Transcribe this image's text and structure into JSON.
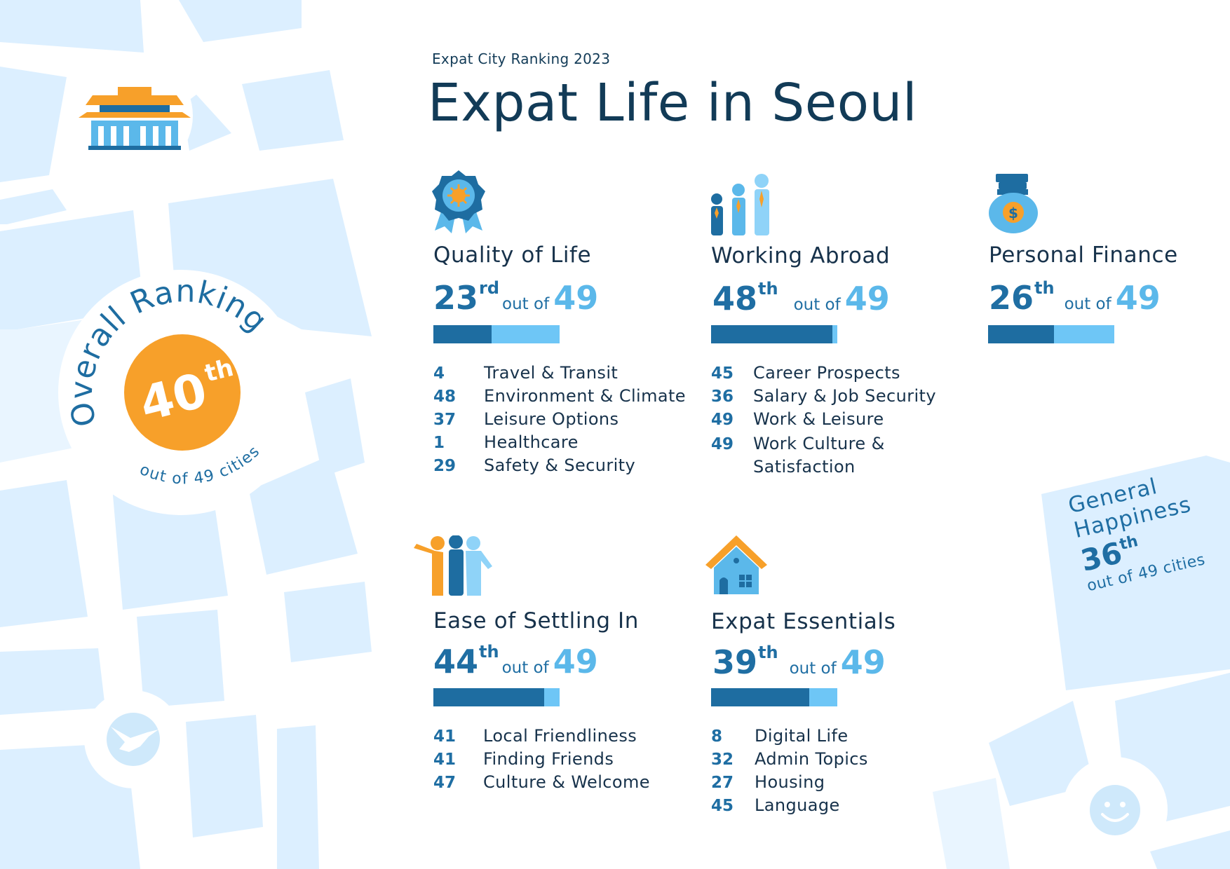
{
  "header": {
    "kicker": "Expat City Ranking 2023",
    "title": "Expat Life in Seoul"
  },
  "overall": {
    "label": "Overall Ranking",
    "rank": "40",
    "suffix": "th",
    "total_text": "out of 49 cities"
  },
  "general_happiness": {
    "line1": "General",
    "line2": "Happiness",
    "rank": "36",
    "suffix": "th",
    "total_text": "out of 49 cities"
  },
  "out_of_text": "out of",
  "total": "49",
  "categories": [
    {
      "title": "Quality of Life",
      "rank": "23",
      "suffix": "rd",
      "progress_fraction": 0.46,
      "icon": "award-medal-icon",
      "items": [
        {
          "rank": "4",
          "label": "Travel & Transit"
        },
        {
          "rank": "48",
          "label": "Environment & Climate"
        },
        {
          "rank": "37",
          "label": "Leisure Options"
        },
        {
          "rank": "1",
          "label": "Healthcare"
        },
        {
          "rank": "29",
          "label": "Safety & Security"
        }
      ]
    },
    {
      "title": "Working Abroad",
      "rank": "48",
      "suffix": "th",
      "progress_fraction": 0.96,
      "icon": "business-people-icon",
      "items": [
        {
          "rank": "45",
          "label": "Career Prospects"
        },
        {
          "rank": "36",
          "label": "Salary & Job Security"
        },
        {
          "rank": "49",
          "label": "Work & Leisure"
        },
        {
          "rank": "49",
          "label": "Work Culture & Satisfaction"
        }
      ]
    },
    {
      "title": "Personal Finance",
      "rank": "26",
      "suffix": "th",
      "progress_fraction": 0.52,
      "icon": "money-bag-icon",
      "items": []
    },
    {
      "title": "Ease of Settling In",
      "rank": "44",
      "suffix": "th",
      "progress_fraction": 0.88,
      "icon": "friends-group-icon",
      "items": [
        {
          "rank": "41",
          "label": "Local Friendliness"
        },
        {
          "rank": "41",
          "label": "Finding Friends"
        },
        {
          "rank": "47",
          "label": "Culture & Welcome"
        }
      ]
    },
    {
      "title": "Expat Essentials",
      "rank": "39",
      "suffix": "th",
      "progress_fraction": 0.78,
      "icon": "house-icon",
      "items": [
        {
          "rank": "8",
          "label": "Digital Life"
        },
        {
          "rank": "32",
          "label": "Admin Topics"
        },
        {
          "rank": "27",
          "label": "Housing"
        },
        {
          "rank": "45",
          "label": "Language"
        }
      ]
    }
  ],
  "colors": {
    "primary_bar": "#1e6da1",
    "secondary_bar": "#6ec6f6",
    "accent_orange": "#f7a02a",
    "map_block": "#dcefff",
    "map_block_light": "#e9f5ff",
    "text_dark": "#17324b",
    "text_blue": "#1f6ea3"
  },
  "decorative_icons": [
    "palace-icon",
    "crane-bird-icon",
    "smiley-face-icon"
  ]
}
